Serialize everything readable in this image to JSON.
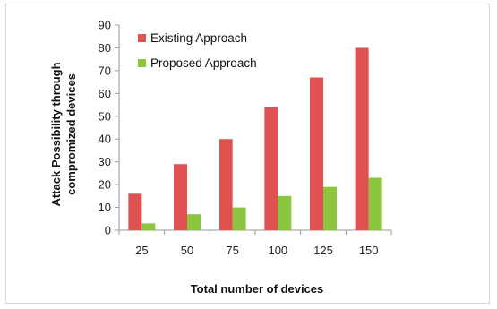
{
  "chart_data": {
    "type": "bar",
    "title": "",
    "xlabel": "Total number of devices",
    "ylabel": "Attack Possibility through compromized devices",
    "ylabel_lines": [
      "Attack Possibility through",
      "compromized devices"
    ],
    "categories": [
      "25",
      "50",
      "75",
      "100",
      "125",
      "150"
    ],
    "series": [
      {
        "name": "Existing Approach",
        "values": [
          16,
          29,
          40,
          54,
          67,
          80
        ],
        "color": "#e05252"
      },
      {
        "name": "Proposed Approach",
        "values": [
          3,
          7,
          10,
          15,
          19,
          23
        ],
        "color": "#8cc63f"
      }
    ],
    "ylim": [
      0,
      90
    ],
    "yticks": [
      "0",
      "10",
      "20",
      "30",
      "40",
      "50",
      "60",
      "70",
      "80",
      "90"
    ],
    "grid": false,
    "legend_position": "top-left"
  },
  "colors": {
    "axis": "#9a9a9a",
    "existing": "#e05252",
    "proposed": "#8cc63f"
  }
}
